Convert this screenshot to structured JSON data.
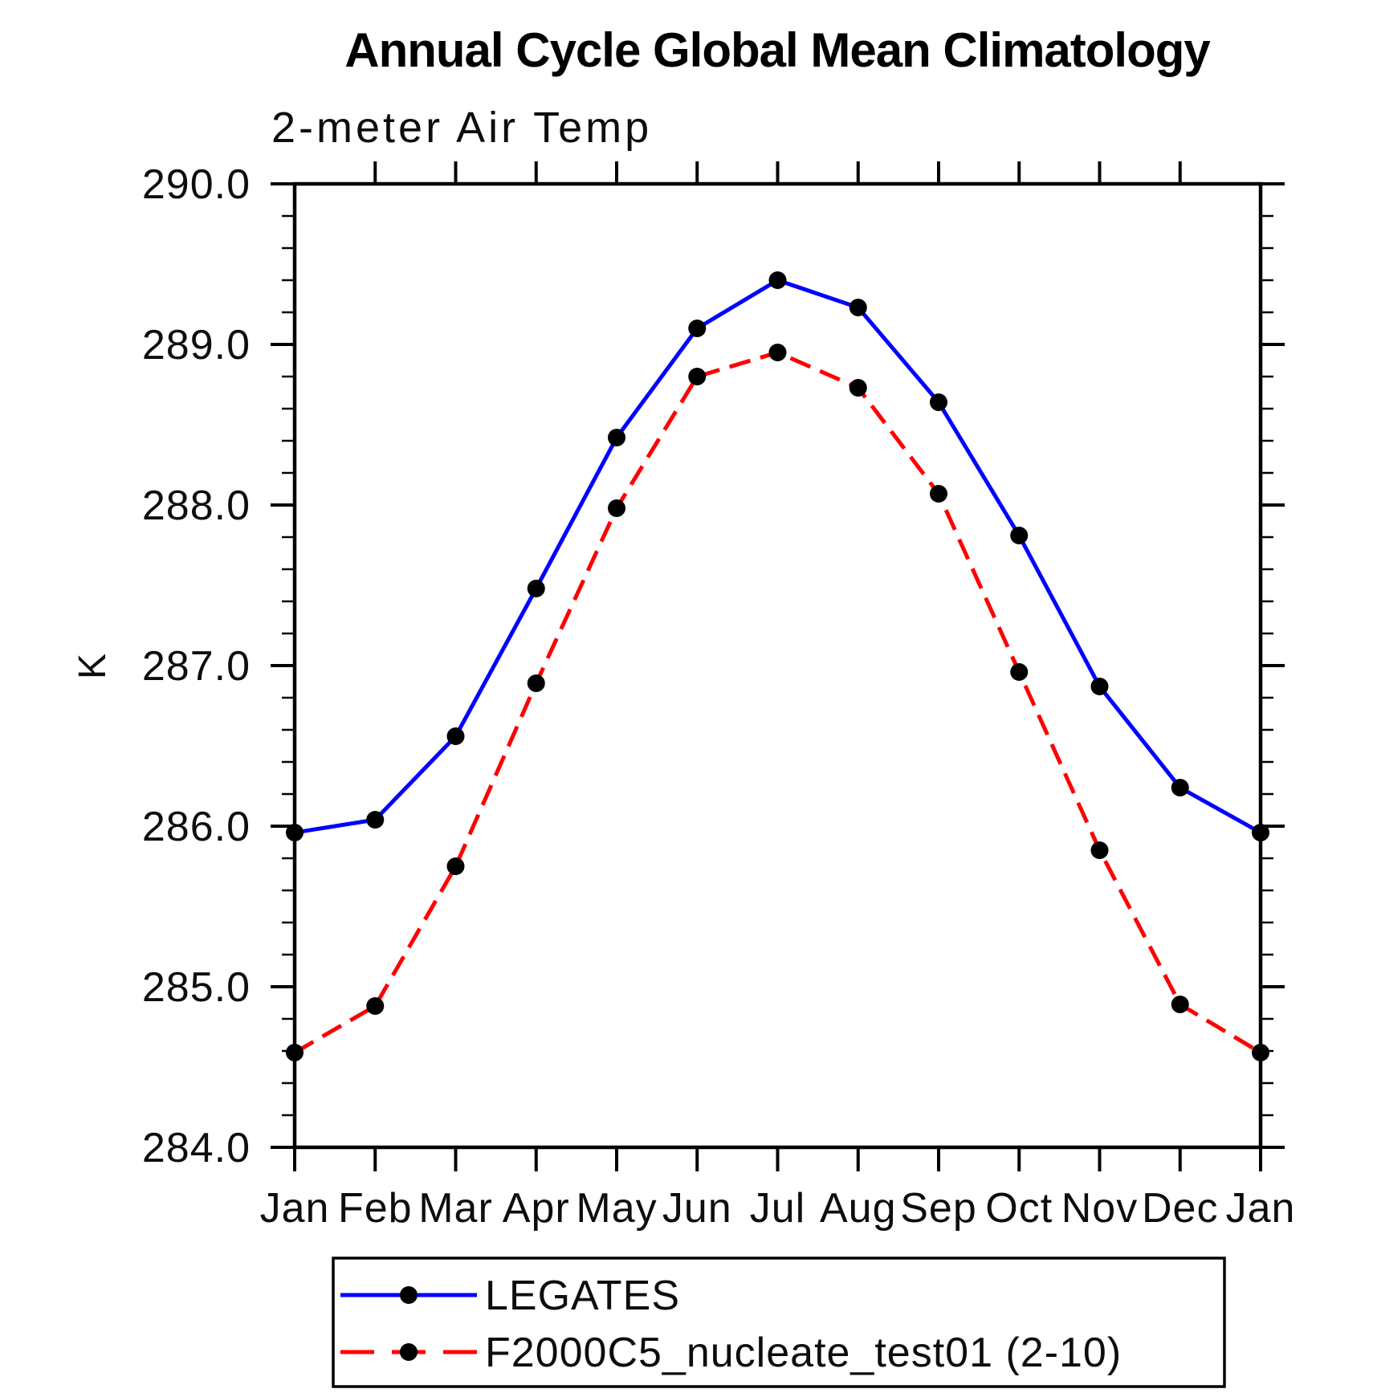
{
  "title": "Annual Cycle Global Mean Climatology",
  "subtitle": "2-meter Air Temp",
  "chart_data": {
    "type": "line",
    "title": "Annual Cycle Global Mean Climatology",
    "subtitle": "2-meter Air Temp",
    "xlabel": "",
    "ylabel": "K",
    "x_categories": [
      "Jan",
      "Feb",
      "Mar",
      "Apr",
      "May",
      "Jun",
      "Jul",
      "Aug",
      "Sep",
      "Oct",
      "Nov",
      "Dec",
      "Jan"
    ],
    "ylim": [
      284.0,
      290.0
    ],
    "ytick_interval": 1.0,
    "yminor_interval": 0.2,
    "ytick_labels": [
      "290.0",
      "289.0",
      "288.0",
      "287.0",
      "286.0",
      "285.0",
      "284.0"
    ],
    "grid": false,
    "legend_position": "bottom-left-box",
    "series": [
      {
        "name": "LEGATES",
        "color": "#0000ff",
        "line_style": "solid",
        "marker": "filled-circle",
        "marker_color": "#000000",
        "values": [
          285.96,
          286.04,
          286.56,
          287.48,
          288.42,
          289.1,
          289.4,
          289.23,
          288.64,
          287.81,
          286.87,
          286.24,
          285.96
        ]
      },
      {
        "name": "F2000C5_nucleate_test01 (2-10)",
        "color": "#ff0000",
        "line_style": "dashed",
        "marker": "filled-circle",
        "marker_color": "#000000",
        "values": [
          284.59,
          284.88,
          285.75,
          286.89,
          287.98,
          288.8,
          288.95,
          288.73,
          288.07,
          286.96,
          285.85,
          284.89,
          284.59
        ]
      }
    ]
  }
}
